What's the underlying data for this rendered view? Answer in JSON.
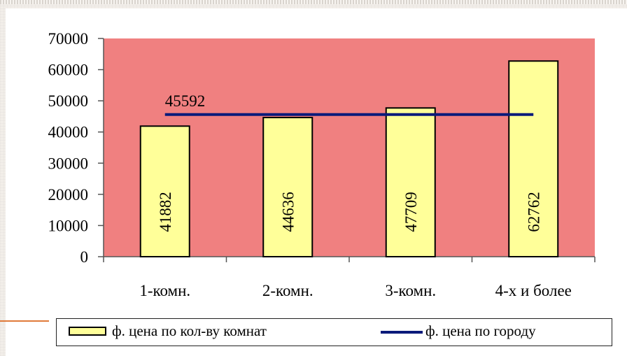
{
  "chart_data": {
    "type": "bar",
    "categories": [
      "1-комн.",
      "2-комн.",
      "3-комн.",
      "4-х и более"
    ],
    "series": [
      {
        "name": "ф. цена по кол-ву комнат",
        "type": "bar",
        "values": [
          41882,
          44636,
          47709,
          62762
        ],
        "color": "#ffff99"
      },
      {
        "name": "ф. цена по городу",
        "type": "line",
        "values": [
          45592,
          45592,
          45592,
          45592
        ],
        "color": "#0a1a7a"
      }
    ],
    "data_labels": [
      "41882",
      "44636",
      "47709",
      "62762"
    ],
    "line_label": "45592",
    "yticks": [
      0,
      10000,
      20000,
      30000,
      40000,
      50000,
      60000,
      70000
    ],
    "ylim": [
      0,
      70000
    ],
    "title": "",
    "xlabel": "",
    "ylabel": "",
    "grid": false,
    "legend_position": "bottom",
    "plot_background": "#f08080",
    "bar_color": "#ffff99",
    "line_color": "#0a1a7a"
  },
  "legend": {
    "bar_label": "ф. цена по кол-ву комнат",
    "line_label": "ф. цена по городу"
  }
}
